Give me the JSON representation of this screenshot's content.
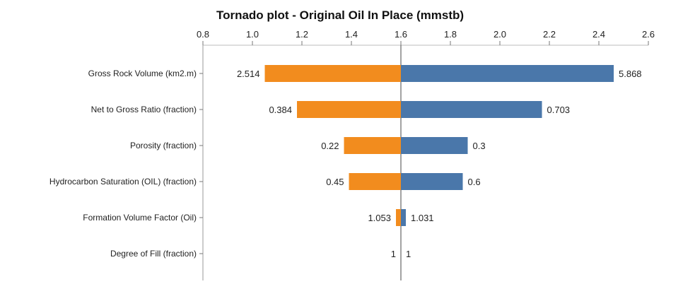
{
  "chart_data": {
    "type": "bar",
    "orientation": "horizontal",
    "variant": "tornado",
    "title": "Tornado plot - Original Oil In Place  (mmstb)",
    "xlim": [
      0.8,
      2.6
    ],
    "x_ticks": [
      "0.8",
      "1.0",
      "1.2",
      "1.4",
      "1.6",
      "1.8",
      "2.0",
      "2.2",
      "2.4",
      "2.6"
    ],
    "base_value": 1.6,
    "grid": false,
    "legend": "none",
    "categories": [
      "Gross Rock Volume  (km2.m)",
      "Net to Gross Ratio  (fraction)",
      "Porosity  (fraction)",
      "Hydrocarbon Saturation (OIL)  (fraction)",
      "Formation Volume Factor (Oil)",
      "Degree of Fill  (fraction)"
    ],
    "series": [
      {
        "color": "#f28c1e",
        "values": [
          1.05,
          1.18,
          1.37,
          1.39,
          1.58,
          1.6
        ],
        "labels": [
          "2.514",
          "0.384",
          "0.22",
          "0.45",
          "1.053",
          "1"
        ]
      },
      {
        "color": "#4a77aa",
        "values": [
          2.46,
          2.17,
          1.87,
          1.85,
          1.62,
          1.6
        ],
        "labels": [
          "5.868",
          "0.703",
          "0.3",
          "0.6",
          "1.031",
          "1"
        ]
      }
    ]
  }
}
